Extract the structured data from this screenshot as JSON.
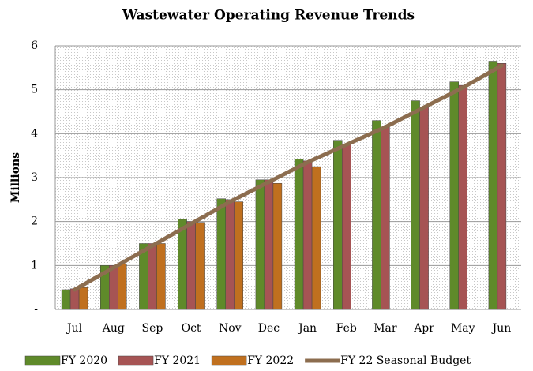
{
  "chart_data": {
    "type": "bar_line",
    "title": "Wastewater Operating Revenue Trends",
    "y_label": "Millions",
    "categories": [
      "Jul",
      "Aug",
      "Sep",
      "Oct",
      "Nov",
      "Dec",
      "Jan",
      "Feb",
      "Mar",
      "Apr",
      "May",
      "Jun"
    ],
    "series": [
      {
        "name": "FY 2020",
        "color": "#5f8a2a",
        "type": "bar",
        "values": [
          0.45,
          1.0,
          1.5,
          2.05,
          2.52,
          2.95,
          3.42,
          3.85,
          4.3,
          4.75,
          5.18,
          5.65
        ]
      },
      {
        "name": "FY 2021",
        "color": "#a65454",
        "type": "bar",
        "values": [
          0.47,
          1.0,
          1.5,
          2.0,
          2.5,
          2.95,
          3.38,
          3.75,
          4.15,
          4.6,
          5.1,
          5.6
        ]
      },
      {
        "name": "FY 2022",
        "color": "#c0701f",
        "type": "bar",
        "values": [
          0.5,
          1.03,
          1.5,
          1.98,
          2.45,
          2.87,
          3.25,
          null,
          null,
          null,
          null,
          null
        ]
      },
      {
        "name": "FY 22 Seasonal Budget",
        "color": "#8c6d4f",
        "type": "line",
        "values": [
          0.45,
          0.95,
          1.45,
          1.95,
          2.45,
          2.9,
          3.35,
          3.75,
          4.15,
          4.6,
          5.05,
          5.55
        ]
      }
    ],
    "ylim": [
      0,
      6
    ],
    "yticks": [
      {
        "value": 0,
        "label": "-"
      },
      1,
      2,
      3,
      4,
      5,
      6
    ],
    "grid": true,
    "legend": "bottom"
  }
}
